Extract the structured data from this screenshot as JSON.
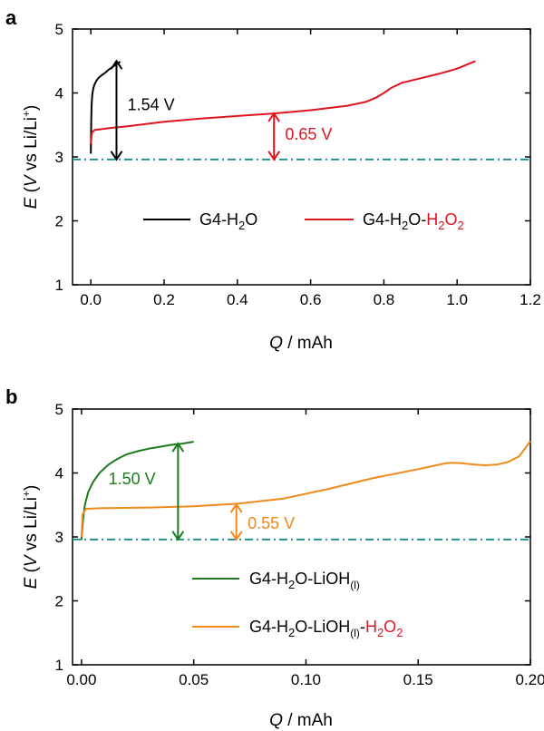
{
  "chart_data": [
    {
      "panel": "a",
      "type": "line",
      "xlabel_italic": "Q",
      "xlabel_rest": " / mAh",
      "ylabel_italic_e": "E",
      "ylabel_open": " (",
      "ylabel_italic_v": "V",
      "ylabel_rest": " vs Li/Li",
      "ylabel_sup": "+",
      "ylabel_close": ")",
      "xlim": [
        -0.05,
        1.2
      ],
      "ylim": [
        1,
        5
      ],
      "xticks": [
        "0.0",
        "0.2",
        "0.4",
        "0.6",
        "0.8",
        "1.0",
        "1.2"
      ],
      "yticks": [
        "1",
        "2",
        "3",
        "4",
        "5"
      ],
      "reference_line": {
        "y": 2.96,
        "style": "dash-dot",
        "color": "#1b8a8a"
      },
      "series": [
        {
          "id": "a-black",
          "color": "#000000",
          "legend": {
            "base": "G4-H",
            "sub1": "2",
            "mid": "O",
            "extra": "",
            "sub2": "",
            "tail": "",
            "sub3": ""
          },
          "x": [
            0.0,
            0.0005,
            0.001,
            0.002,
            0.004,
            0.007,
            0.01,
            0.015,
            0.02,
            0.03,
            0.04,
            0.05,
            0.06,
            0.07,
            0.08
          ],
          "y": [
            3.05,
            3.3,
            3.55,
            3.8,
            3.98,
            4.08,
            4.13,
            4.19,
            4.23,
            4.28,
            4.32,
            4.37,
            4.41,
            4.45,
            4.49
          ]
        },
        {
          "id": "a-red",
          "color": "#e0141e",
          "legend": {
            "base": "G4-H",
            "sub1": "2",
            "mid": "O-",
            "extra": "",
            "sub2": "",
            "tail": "H",
            "sub3": "2",
            "tail2": "O",
            "sub4": "2"
          },
          "x": [
            0.0,
            0.003,
            0.01,
            0.05,
            0.1,
            0.2,
            0.3,
            0.4,
            0.5,
            0.6,
            0.7,
            0.75,
            0.78,
            0.8,
            0.82,
            0.85,
            0.9,
            0.95,
            1.0,
            1.05
          ],
          "y": [
            3.2,
            3.38,
            3.42,
            3.45,
            3.48,
            3.55,
            3.6,
            3.64,
            3.68,
            3.73,
            3.8,
            3.86,
            3.93,
            4.0,
            4.08,
            4.16,
            4.23,
            4.3,
            4.38,
            4.5
          ]
        }
      ],
      "annotations": [
        {
          "text": "1.54 V",
          "color": "#000000",
          "x": 0.07,
          "y1": 2.96,
          "y2": 4.5,
          "text_x": 0.1,
          "text_y": 3.73
        },
        {
          "text": "0.65 V",
          "color": "#e0141e",
          "x": 0.5,
          "y1": 2.96,
          "y2": 3.68,
          "text_x": 0.53,
          "text_y": 3.27
        }
      ]
    },
    {
      "panel": "b",
      "type": "line",
      "xlabel_italic": "Q",
      "xlabel_rest": " / mAh",
      "ylabel_italic_e": "E",
      "ylabel_open": " (",
      "ylabel_italic_v": "V",
      "ylabel_rest": " vs Li/Li",
      "ylabel_sup": "+",
      "ylabel_close": ")",
      "xlim": [
        -0.004,
        0.2
      ],
      "ylim": [
        1,
        5
      ],
      "xticks": [
        "0.00",
        "0.05",
        "0.10",
        "0.15",
        "0.20"
      ],
      "yticks": [
        "1",
        "2",
        "3",
        "4",
        "5"
      ],
      "reference_line": {
        "y": 2.96,
        "style": "dash-dot",
        "color": "#1b8a8a"
      },
      "series": [
        {
          "id": "b-green",
          "color": "#1d7a1d",
          "x": [
            0.0,
            0.0003,
            0.0008,
            0.0015,
            0.003,
            0.005,
            0.008,
            0.012,
            0.016,
            0.02,
            0.025,
            0.03,
            0.035,
            0.04,
            0.045,
            0.05
          ],
          "y": [
            2.95,
            3.1,
            3.3,
            3.5,
            3.7,
            3.85,
            4.0,
            4.13,
            4.22,
            4.29,
            4.34,
            4.38,
            4.41,
            4.44,
            4.46,
            4.49
          ]
        },
        {
          "id": "b-orange",
          "color": "#f08a1c",
          "x": [
            0.0,
            0.0005,
            0.002,
            0.01,
            0.03,
            0.05,
            0.07,
            0.09,
            0.11,
            0.13,
            0.15,
            0.162,
            0.165,
            0.17,
            0.175,
            0.18,
            0.185,
            0.19,
            0.195,
            0.2
          ],
          "y": [
            3.0,
            3.35,
            3.44,
            3.45,
            3.46,
            3.48,
            3.52,
            3.6,
            3.75,
            3.92,
            4.06,
            4.15,
            4.16,
            4.15,
            4.13,
            4.12,
            4.13,
            4.17,
            4.26,
            4.5
          ]
        }
      ],
      "legend_items": [
        {
          "base": "G4-H",
          "sub1": "2",
          "mid": "O-LiOH",
          "sub_l": "(l)",
          "tail": "",
          "sub3": "",
          "tail2": "",
          "sub4": ""
        },
        {
          "base": "G4-H",
          "sub1": "2",
          "mid": "O-LiOH",
          "sub_l": "(l)",
          "dash": "-",
          "tail": "H",
          "sub3": "2",
          "tail2": "O",
          "sub4": "2"
        }
      ],
      "annotations": [
        {
          "text": "1.50 V",
          "color": "#1d7a1d",
          "x": 0.043,
          "y1": 2.96,
          "y2": 4.46,
          "text_x": 0.012,
          "text_y": 3.82
        },
        {
          "text": "0.55 V",
          "color": "#f08a1c",
          "x": 0.069,
          "y1": 2.96,
          "y2": 3.51,
          "text_x": 0.074,
          "text_y": 3.13
        }
      ]
    }
  ]
}
